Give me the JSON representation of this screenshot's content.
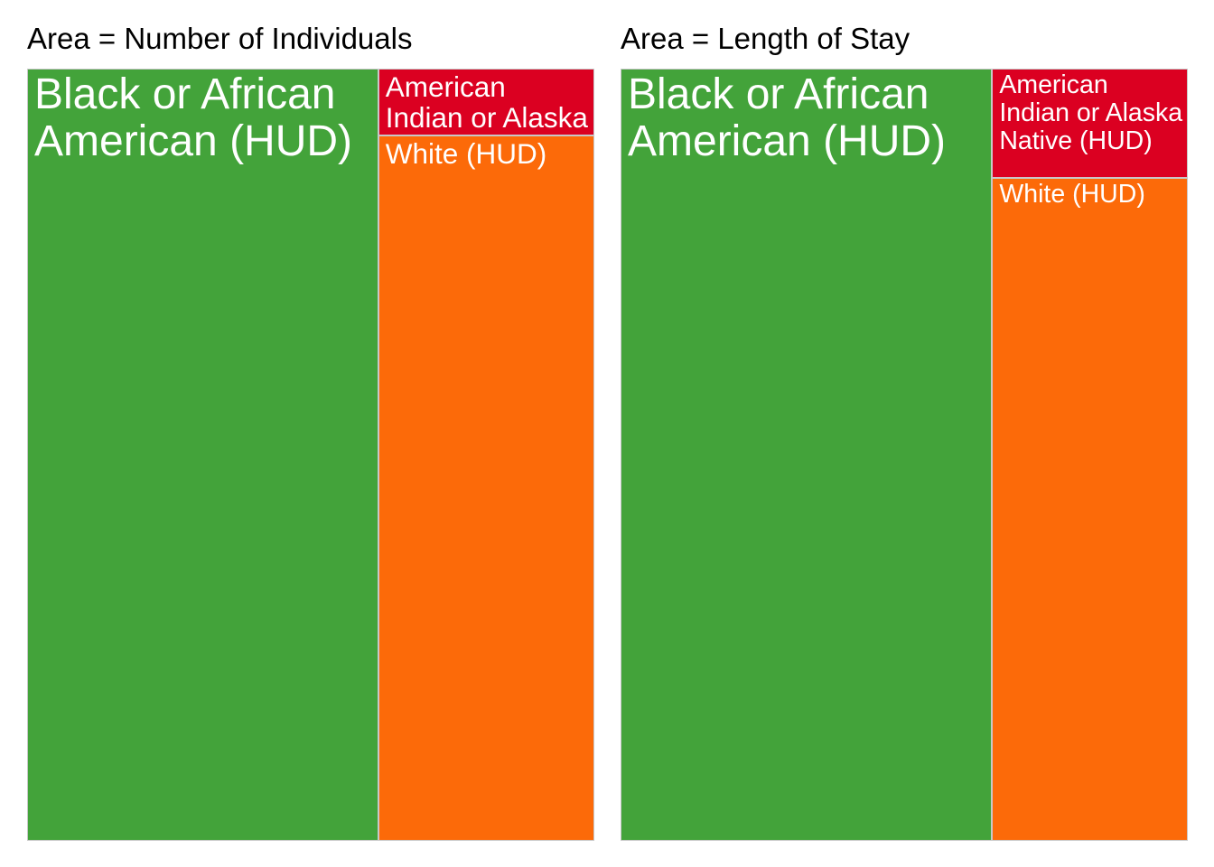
{
  "colors": {
    "Black or African American (HUD)": "#43a33a",
    "White (HUD)": "#fc6a09",
    "American Indian or Alaska Native (HUD)": "#db0021",
    "tile_border": "#c8c8c8",
    "label_text": "#ffffff"
  },
  "chart_data": [
    {
      "type": "treemap",
      "title": "Area = Number of Individuals",
      "categories": [
        "Black or African American (HUD)",
        "White (HUD)",
        "American Indian or Alaska Native (HUD)"
      ],
      "values": [
        61.9,
        34.8,
        3.3
      ],
      "value_unit": "approximate percent share of area"
    },
    {
      "type": "treemap",
      "title": "Area = Length of Stay",
      "categories": [
        "Black or African American (HUD)",
        "White (HUD)",
        "American Indian or Alaska Native (HUD)"
      ],
      "values": [
        65.5,
        29.6,
        4.9
      ],
      "value_unit": "approximate percent share of area"
    }
  ]
}
